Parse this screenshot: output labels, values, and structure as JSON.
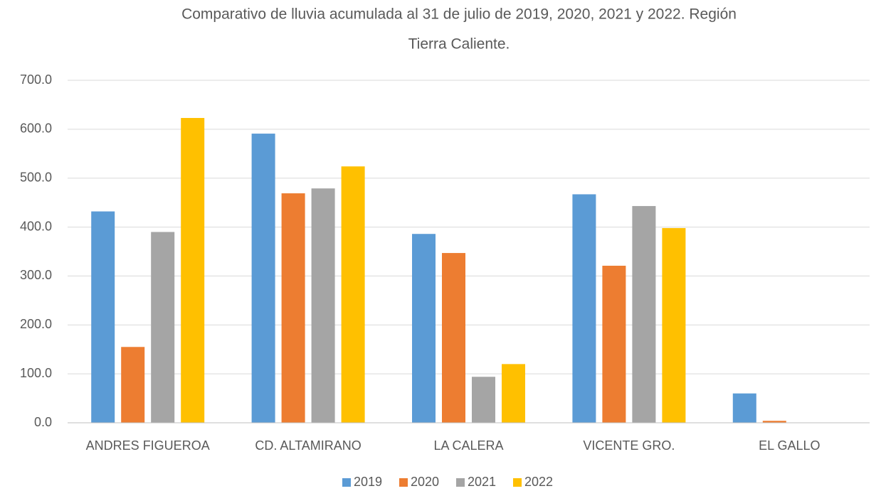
{
  "chart_data": {
    "type": "bar",
    "title": [
      "Comparativo de lluvia acumulada al 31 de julio de 2019, 2020, 2021 y 2022. Región",
      "Tierra Caliente."
    ],
    "categories": [
      "ANDRES FIGUEROA",
      "CD. ALTAMIRANO",
      "LA CALERA",
      "VICENTE GRO.",
      "EL GALLO"
    ],
    "series": [
      {
        "name": "2019",
        "color": "#5b9bd5",
        "values": [
          432,
          591,
          386,
          467,
          60
        ]
      },
      {
        "name": "2020",
        "color": "#ed7d31",
        "values": [
          155,
          469,
          347,
          321,
          4
        ]
      },
      {
        "name": "2021",
        "color": "#a5a5a5",
        "values": [
          390,
          479,
          94,
          443,
          0
        ]
      },
      {
        "name": "2022",
        "color": "#ffc000",
        "values": [
          623,
          524,
          120,
          398,
          0
        ]
      }
    ],
    "ylim": [
      0,
      700
    ],
    "yticks": [
      {
        "value": 0,
        "label": "0.0"
      },
      {
        "value": 100,
        "label": "100.0"
      },
      {
        "value": 200,
        "label": "200.0"
      },
      {
        "value": 300,
        "label": "300.0"
      },
      {
        "value": 400,
        "label": "400.0"
      },
      {
        "value": 500,
        "label": "500.0"
      },
      {
        "value": 600,
        "label": "600.0"
      },
      {
        "value": 700,
        "label": "700.0"
      }
    ],
    "grid": true,
    "legend": "bottom"
  }
}
